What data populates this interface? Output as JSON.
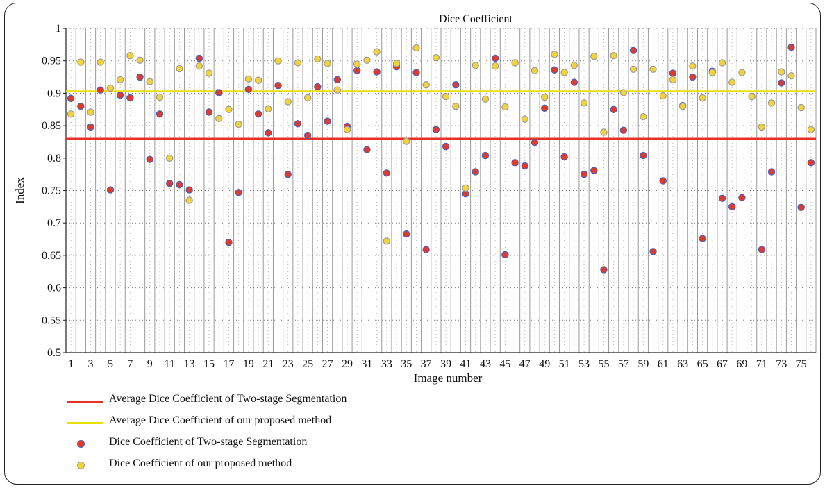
{
  "chart_data": {
    "type": "scatter",
    "title": "Dice Coefficient",
    "xlabel": "Image number",
    "ylabel": "Index",
    "ylim": [
      0.5,
      1
    ],
    "yticks": [
      "0.5",
      "0.55",
      "0.6",
      "0.65",
      "0.7",
      "0.75",
      "0.8",
      "0.85",
      "0.9",
      "0.95",
      "1"
    ],
    "xticks": [
      "1",
      "3",
      "5",
      "7",
      "9",
      "11",
      "13",
      "15",
      "17",
      "19",
      "21",
      "23",
      "25",
      "27",
      "29",
      "31",
      "33",
      "35",
      "37",
      "39",
      "41",
      "43",
      "45",
      "47",
      "49",
      "51",
      "53",
      "55",
      "57",
      "59",
      "61",
      "63",
      "65",
      "67",
      "69",
      "71",
      "73",
      "75"
    ],
    "grid": true,
    "legend_position": "bottom",
    "x": [
      1,
      2,
      3,
      4,
      5,
      6,
      7,
      8,
      9,
      10,
      11,
      12,
      13,
      14,
      15,
      16,
      17,
      18,
      19,
      20,
      21,
      22,
      23,
      24,
      25,
      26,
      27,
      28,
      29,
      30,
      31,
      32,
      33,
      34,
      35,
      36,
      37,
      38,
      39,
      40,
      41,
      42,
      43,
      44,
      45,
      46,
      47,
      48,
      49,
      50,
      51,
      52,
      53,
      54,
      55,
      56,
      57,
      58,
      59,
      60,
      61,
      62,
      63,
      64,
      65,
      66,
      67,
      68,
      69,
      70,
      71,
      72,
      73,
      74,
      75,
      76
    ],
    "series": [
      {
        "name": "Average Dice Coefficient of Two-stage Segmentation",
        "kind": "hline",
        "value": 0.83,
        "color": "#e8302a"
      },
      {
        "name": "Average Dice Coefficient of our proposed method",
        "kind": "hline",
        "value": 0.903,
        "color": "#e8e000"
      },
      {
        "name": "Dice Coefficient of Two-stage Segmentation",
        "kind": "points",
        "fill": "#e03a2a",
        "stroke": "#4a5fc0",
        "values": [
          0.892,
          0.88,
          0.848,
          0.905,
          0.751,
          0.897,
          0.893,
          0.925,
          0.798,
          0.868,
          0.761,
          0.759,
          0.751,
          0.954,
          0.871,
          0.901,
          0.67,
          0.747,
          0.906,
          0.868,
          0.839,
          0.912,
          0.775,
          0.853,
          0.835,
          0.91,
          0.857,
          0.921,
          0.849,
          0.935,
          0.813,
          0.933,
          0.777,
          0.941,
          0.683,
          0.932,
          0.659,
          0.844,
          0.818,
          0.913,
          0.745,
          0.779,
          0.804,
          0.954,
          0.651,
          0.793,
          0.788,
          0.824,
          0.877,
          0.936,
          0.802,
          0.917,
          0.775,
          0.781,
          0.628,
          0.875,
          0.843,
          0.966,
          0.804,
          0.656,
          0.765,
          0.931,
          0.881,
          0.925,
          0.676,
          0.934,
          0.738,
          0.725,
          0.739,
          0.895,
          0.659,
          0.779,
          0.916,
          0.971,
          0.724,
          0.793
        ]
      },
      {
        "name": "Dice Coefficient of our proposed method",
        "kind": "points",
        "fill": "#f2d43a",
        "stroke": "#9a9a9a",
        "values": [
          0.868,
          0.948,
          0.871,
          0.948,
          0.908,
          0.921,
          0.958,
          0.951,
          0.918,
          0.894,
          0.8,
          0.938,
          0.735,
          0.942,
          0.931,
          0.861,
          0.875,
          0.852,
          0.922,
          0.92,
          0.876,
          0.95,
          0.887,
          0.947,
          0.893,
          0.953,
          0.946,
          0.905,
          0.844,
          0.945,
          0.951,
          0.964,
          0.672,
          0.946,
          0.826,
          0.97,
          0.913,
          0.955,
          0.895,
          0.88,
          0.754,
          0.943,
          0.891,
          0.942,
          0.879,
          0.947,
          0.86,
          0.935,
          0.894,
          0.96,
          0.932,
          0.943,
          0.885,
          0.957,
          0.84,
          0.958,
          0.901,
          0.937,
          0.864,
          0.937,
          0.896,
          0.921,
          0.88,
          0.942,
          0.893,
          0.932,
          0.947,
          0.917,
          0.932,
          0.895,
          0.848,
          0.885,
          0.933,
          0.927,
          0.878,
          0.844
        ]
      }
    ]
  }
}
